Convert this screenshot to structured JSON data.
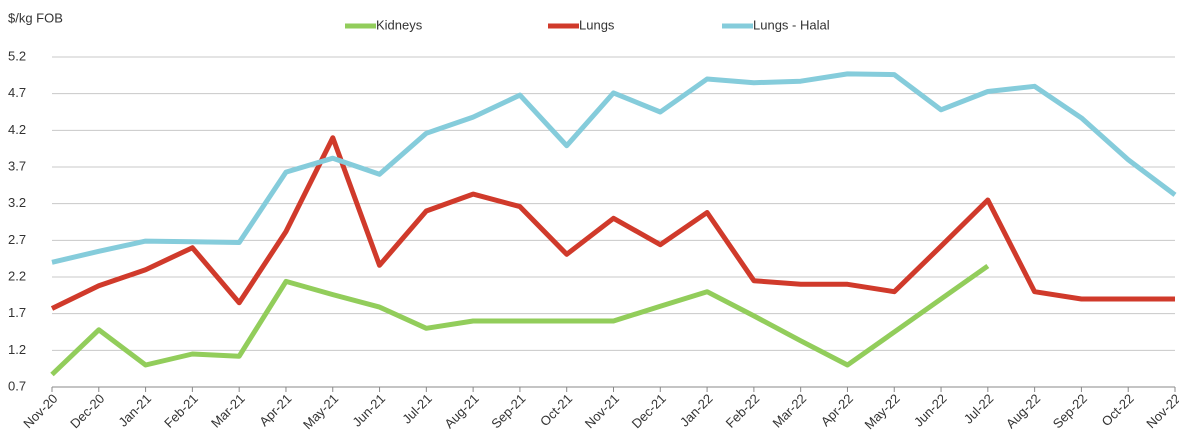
{
  "chart_data": {
    "type": "line",
    "y_label": "$/kg FOB",
    "categories": [
      "Nov-20",
      "Dec-20",
      "Jan-21",
      "Feb-21",
      "Mar-21",
      "Apr-21",
      "May-21",
      "Jun-21",
      "Jul-21",
      "Aug-21",
      "Sep-21",
      "Oct-21",
      "Nov-21",
      "Dec-21",
      "Jan-22",
      "Feb-22",
      "Mar-22",
      "Apr-22",
      "May-22",
      "Jun-22",
      "Jul-22",
      "Aug-22",
      "Sep-22",
      "Oct-22",
      "Nov-22"
    ],
    "series": [
      {
        "name": "Kidneys",
        "color": "#92cd5b",
        "values": [
          0.87,
          1.48,
          1.0,
          1.15,
          1.12,
          2.14,
          1.96,
          1.79,
          1.5,
          1.6,
          1.6,
          1.6,
          1.6,
          1.8,
          2.0,
          1.67,
          1.33,
          1.0,
          1.45,
          1.9,
          2.35,
          null,
          null,
          null,
          null
        ]
      },
      {
        "name": "Lungs",
        "color": "#d03a2b",
        "values": [
          1.77,
          2.08,
          2.3,
          2.6,
          1.85,
          2.82,
          4.1,
          2.36,
          3.1,
          3.33,
          3.16,
          2.51,
          3.0,
          2.64,
          3.08,
          2.15,
          2.1,
          2.1,
          2.0,
          2.62,
          3.25,
          2.0,
          1.9,
          1.9,
          1.9
        ]
      },
      {
        "name": "Lungs - Halal",
        "color": "#85ccdb",
        "values": [
          2.4,
          2.55,
          2.69,
          2.68,
          2.67,
          3.63,
          3.82,
          3.6,
          4.16,
          4.38,
          4.68,
          3.99,
          4.71,
          4.45,
          4.9,
          4.85,
          4.87,
          4.97,
          4.96,
          4.48,
          4.73,
          4.8,
          4.37,
          3.8,
          3.32
        ]
      }
    ],
    "ylim": [
      0.7,
      5.2
    ],
    "yticks": [
      0.7,
      1.2,
      1.7,
      2.2,
      2.7,
      3.2,
      3.7,
      4.2,
      4.7,
      5.2
    ],
    "grid": true,
    "legend": "top"
  }
}
